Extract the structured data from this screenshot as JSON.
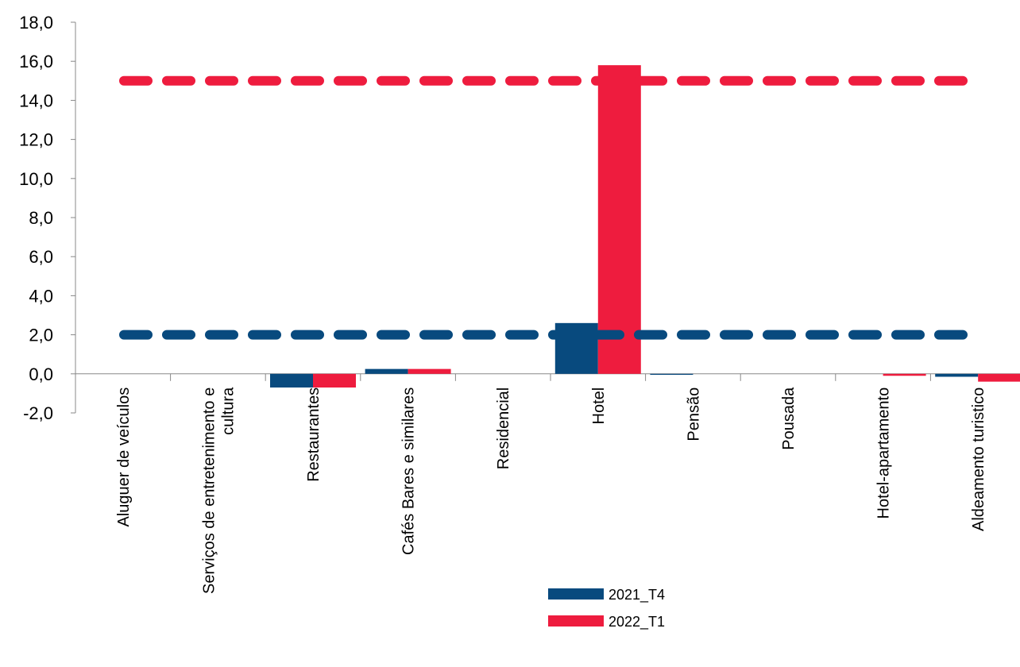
{
  "chart_data": {
    "type": "bar",
    "categories": [
      "Aluguer de veículos",
      "Serviços de entretenimento e cultura",
      "Restaurantes",
      "Cafés Bares e similares",
      "Residencial",
      "Hotel",
      "Pensão",
      "Pousada",
      "Hotel-apartamento",
      "Aldeamento turistico"
    ],
    "series": [
      {
        "name": "2021_T4",
        "color": "#084a7e",
        "values": [
          0,
          0,
          -0.7,
          0.25,
          0,
          2.6,
          -0.05,
          0,
          0,
          -0.15
        ]
      },
      {
        "name": "2022_T1",
        "color": "#ee1c3e",
        "values": [
          0,
          0,
          -0.7,
          0.25,
          0,
          15.8,
          0,
          0,
          -0.1,
          -0.4
        ]
      }
    ],
    "reference_lines": [
      {
        "value": 15.0,
        "color": "#ee1c3e"
      },
      {
        "value": 2.0,
        "color": "#084a7e"
      }
    ],
    "ylim": [
      -2,
      18
    ],
    "yticks": [
      {
        "value": -2,
        "label": "-2,0"
      },
      {
        "value": 0,
        "label": "0,0"
      },
      {
        "value": 2,
        "label": "2,0"
      },
      {
        "value": 4,
        "label": "4,0"
      },
      {
        "value": 6,
        "label": "6,0"
      },
      {
        "value": 8,
        "label": "8,0"
      },
      {
        "value": 10,
        "label": "10,0"
      },
      {
        "value": 12,
        "label": "12,0"
      },
      {
        "value": 14,
        "label": "14,0"
      },
      {
        "value": 16,
        "label": "16,0"
      },
      {
        "value": 18,
        "label": "18,0"
      }
    ],
    "grid": false,
    "legend": "bottom"
  }
}
